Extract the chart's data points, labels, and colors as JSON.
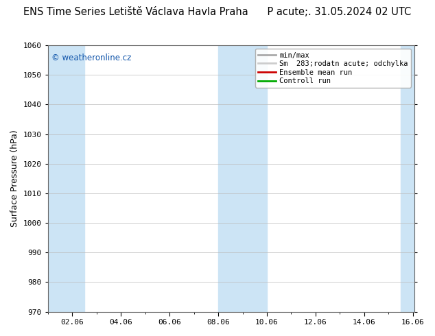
{
  "title": "ENS Time Series Letiště Václava Havla Praha      P acute;. 31.05.2024 02 UTC",
  "ylabel": "Surface Pressure (hPa)",
  "ylim": [
    970,
    1060
  ],
  "yticks": [
    970,
    980,
    990,
    1000,
    1010,
    1020,
    1030,
    1040,
    1050,
    1060
  ],
  "xlim": [
    1.0,
    16.06
  ],
  "xtick_positions": [
    2,
    4,
    6,
    8,
    10,
    12,
    14,
    16
  ],
  "xtick_labels": [
    "02.06",
    "04.06",
    "06.06",
    "08.06",
    "10.06",
    "12.06",
    "14.06",
    "16.06"
  ],
  "shaded_bands": [
    {
      "start": 1.0,
      "end": 2.5,
      "color": "#cce4f5"
    },
    {
      "start": 8.0,
      "end": 10.0,
      "color": "#cce4f5"
    },
    {
      "start": 15.5,
      "end": 16.06,
      "color": "#cce4f5"
    }
  ],
  "watermark": "© weatheronline.cz",
  "watermark_color": "#1155aa",
  "legend_labels": [
    "min/max",
    "Sm  283;rodatn acute; odchylka",
    "Ensemble mean run",
    "Controll run"
  ],
  "legend_line_colors": [
    "#aaaaaa",
    "#cccccc",
    "#cc0000",
    "#00aa00"
  ],
  "background_color": "#ffffff",
  "plot_bg_color": "#ffffff",
  "grid_color": "#bbbbbb",
  "title_fontsize": 10.5,
  "ylabel_fontsize": 9,
  "tick_fontsize": 8,
  "legend_fontsize": 7.5,
  "watermark_fontsize": 8.5
}
